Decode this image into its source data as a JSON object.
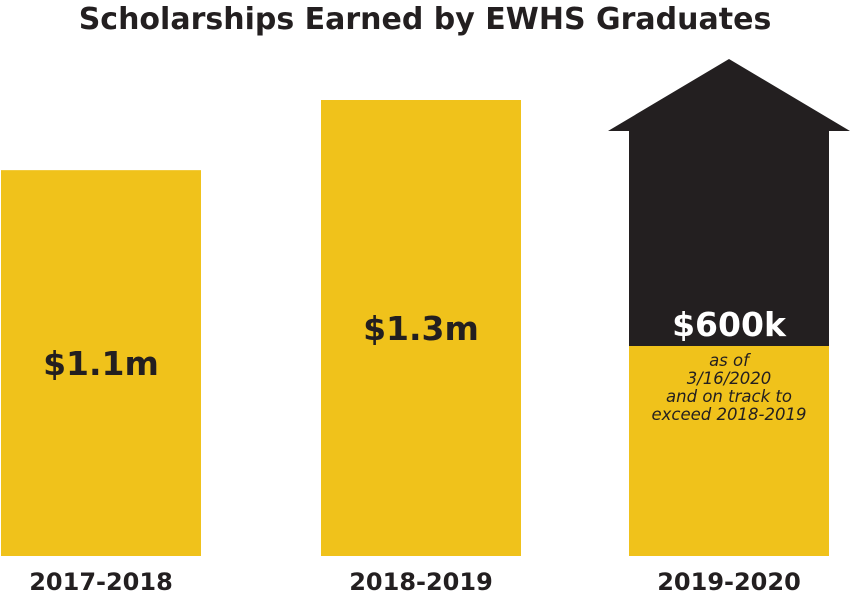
{
  "chart_data": {
    "type": "bar",
    "title": "Scholarships Earned by EWHS Graduates",
    "xlabel": "",
    "ylabel": "",
    "unit": "USD",
    "categories": [
      "2017-2018",
      "2018-2019",
      "2019-2020"
    ],
    "values": [
      1100000,
      1300000,
      600000
    ],
    "labels": [
      "$1.1m",
      "$1.3m",
      "$600k"
    ],
    "ylim": [
      0,
      1300000
    ],
    "grid": false,
    "legend": "none",
    "colors": {
      "bar": "#f0c21b",
      "arrow": "#231f20",
      "text": "#231f20",
      "arrow_text": "#ffffff"
    },
    "annotations": [
      {
        "category": "2019-2020",
        "lines": [
          "as of",
          "3/16/2020",
          "and on track to",
          "exceed 2018-2019"
        ],
        "shape": "arrow-up"
      }
    ]
  }
}
